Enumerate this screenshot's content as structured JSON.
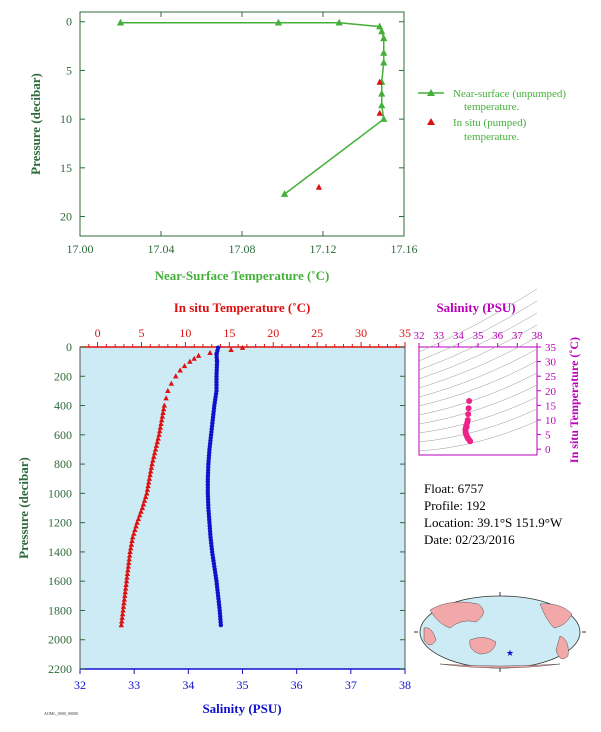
{
  "float_info": {
    "float_label": "Float:",
    "float_value": "6757",
    "profile_label": "Profile:",
    "profile_value": "192",
    "location_label": "Location:",
    "location_value": "39.1°S  151.9°W",
    "date_label": "Date:",
    "date_value": "02/23/2016"
  },
  "colors": {
    "axis_green": "#2e6b3a",
    "near_surface": "#44b03a",
    "in_situ": "#dd1111",
    "salinity": "#1111cc",
    "salinity_title": "#bb00bb",
    "ts_points": "#ee2288",
    "plot_bg": "#cdebf5"
  },
  "chart_data": [
    {
      "id": "near_surface",
      "type": "line",
      "xlabel": "Near-Surface Temperature (˚C)",
      "ylabel": "Pressure (decibar)",
      "xlim": [
        17.0,
        17.16
      ],
      "ylim": [
        22,
        -1
      ],
      "xticks": [
        "17.00",
        "17.04",
        "17.08",
        "17.12",
        "17.16"
      ],
      "xtick_values": [
        17.0,
        17.04,
        17.08,
        17.12,
        17.16
      ],
      "yticks": [
        "0",
        "5",
        "10",
        "15",
        "20"
      ],
      "ytick_values": [
        0,
        5,
        10,
        15,
        20
      ],
      "series": [
        {
          "name": "Near-surface (unpumped) temperature.",
          "marker": "triangle-line",
          "temperature": [
            17.02,
            17.098,
            17.128,
            17.148,
            17.149,
            17.15,
            17.15,
            17.15,
            17.149,
            17.149,
            17.149,
            17.15,
            17.101
          ],
          "pressure": [
            0.1,
            0.1,
            0.1,
            0.5,
            1.0,
            1.7,
            3.2,
            4.2,
            6.2,
            7.4,
            8.6,
            10.0,
            17.7
          ]
        },
        {
          "name": "In situ (pumped) temperature.",
          "marker": "triangle",
          "temperature": [
            17.148,
            17.148,
            17.118
          ],
          "pressure": [
            6.2,
            9.4,
            17.0
          ]
        }
      ]
    },
    {
      "id": "profile",
      "type": "scatter",
      "ylabel": "Pressure (decibar)",
      "top_xlabel": "In situ Temperature (˚C)",
      "bottom_xlabel": "Salinity (PSU)",
      "ylim": [
        2200,
        0
      ],
      "yticks": [
        "0",
        "200",
        "400",
        "600",
        "800",
        "1000",
        "1200",
        "1400",
        "1600",
        "1800",
        "2000",
        "2200"
      ],
      "ytick_values": [
        0,
        200,
        400,
        600,
        800,
        1000,
        1200,
        1400,
        1600,
        1800,
        2000,
        2200
      ],
      "temp_xlim": [
        -2,
        35
      ],
      "temp_ticks": [
        "0",
        "5",
        "10",
        "15",
        "20",
        "25",
        "30",
        "35"
      ],
      "temp_tick_values": [
        0,
        5,
        10,
        15,
        20,
        25,
        30,
        35
      ],
      "sal_xlim": [
        32,
        38
      ],
      "sal_ticks": [
        "32",
        "33",
        "34",
        "35",
        "36",
        "37",
        "38"
      ],
      "sal_tick_values": [
        32,
        33,
        34,
        35,
        36,
        37,
        38
      ],
      "temperature_profile": {
        "pressure": [
          5,
          20,
          40,
          60,
          80,
          100,
          130,
          160,
          200,
          250,
          300,
          350,
          400,
          500,
          600,
          700,
          800,
          900,
          1000,
          1100,
          1200,
          1300,
          1400,
          1500,
          1600,
          1700,
          1800,
          1900
        ],
        "temperature": [
          16.5,
          15.2,
          12.8,
          11.5,
          11.0,
          10.5,
          9.9,
          9.4,
          8.9,
          8.4,
          8.0,
          7.8,
          7.6,
          7.3,
          7.0,
          6.6,
          6.2,
          5.9,
          5.6,
          5.1,
          4.5,
          4.0,
          3.7,
          3.5,
          3.3,
          3.1,
          2.9,
          2.7
        ]
      },
      "salinity_profile": {
        "pressure": [
          5,
          50,
          100,
          200,
          300,
          400,
          500,
          600,
          700,
          800,
          900,
          1000,
          1100,
          1200,
          1300,
          1400,
          1500,
          1600,
          1700,
          1800,
          1900
        ],
        "salinity": [
          34.55,
          34.52,
          34.53,
          34.52,
          34.52,
          34.48,
          34.45,
          34.42,
          34.39,
          34.37,
          34.36,
          34.36,
          34.37,
          34.39,
          34.41,
          34.44,
          34.48,
          34.52,
          34.55,
          34.58,
          34.6
        ]
      }
    },
    {
      "id": "ts_diagram",
      "type": "scatter",
      "title": "Salinity (PSU)",
      "ylabel": "In situ Temperature (˚C)",
      "xlim": [
        32,
        38
      ],
      "ylim": [
        -2,
        35
      ],
      "xticks": [
        "32",
        "33",
        "34",
        "35",
        "36",
        "37",
        "38"
      ],
      "xtick_values": [
        32,
        33,
        34,
        35,
        36,
        37,
        38
      ],
      "yticks": [
        "0",
        "5",
        "10",
        "15",
        "20",
        "25",
        "30",
        "35"
      ],
      "ytick_values": [
        0,
        5,
        10,
        15,
        20,
        25,
        30,
        35
      ],
      "points": {
        "salinity": [
          34.55,
          34.5,
          34.48,
          34.45,
          34.4,
          34.38,
          34.36,
          34.37,
          34.4,
          34.45,
          34.5,
          34.55,
          34.6,
          34.42,
          34.52
        ],
        "temperature": [
          16.5,
          12.0,
          10.0,
          9.0,
          8.0,
          7.3,
          6.6,
          5.8,
          5.0,
          4.2,
          3.6,
          3.2,
          2.7,
          7.6,
          14.0
        ]
      }
    }
  ]
}
